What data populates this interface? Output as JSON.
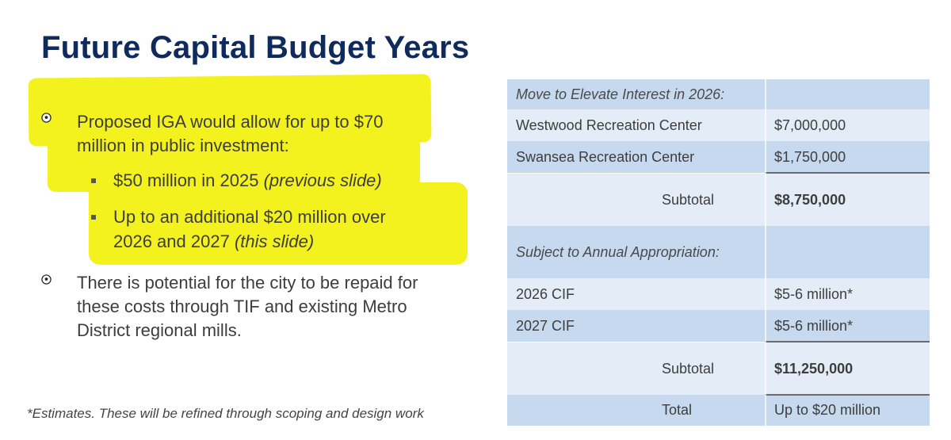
{
  "title": "Future Capital Budget Years",
  "bullets": {
    "b1_line1": "Proposed IGA would allow for up to $70",
    "b1_line2": "million in public investment:",
    "sub1_text": "$50 million in 2025 ",
    "sub1_italic": "(previous slide)",
    "sub2_line1": "Up to an additional $20 million over",
    "sub2_line2_text": "2026 and 2027 ",
    "sub2_line2_italic": "(this slide)",
    "b2_line1": "There is potential for the city to be repaid for",
    "b2_line2": "these costs through TIF and existing Metro",
    "b2_line3": "District regional mills."
  },
  "footnote": "*Estimates. These will be refined through scoping and design work",
  "table": {
    "header1": "Move to Elevate Interest in 2026:",
    "row1_label": "Westwood Recreation Center",
    "row1_value": "$7,000,000",
    "row2_label": "Swansea Recreation Center",
    "row2_value": "$1,750,000",
    "subtotal1_label": "Subtotal",
    "subtotal1_value": "$8,750,000",
    "header2": "Subject to Annual Appropriation:",
    "row3_label": "2026 CIF",
    "row3_value": "$5-6 million*",
    "row4_label": "2027 CIF",
    "row4_value": "$5-6 million*",
    "subtotal2_label": "Subtotal",
    "subtotal2_value": "$11,250,000",
    "total_label": "Total",
    "total_value": "Up to $20 million"
  },
  "colors": {
    "title": "#0f2a5c",
    "highlight": "#f3f21f",
    "table_dark": "#c6d9ee",
    "table_light": "#e4edf7"
  },
  "icons": {
    "bullet": "soccer-ball-icon",
    "sub_bullet": "square-bullet-icon"
  }
}
